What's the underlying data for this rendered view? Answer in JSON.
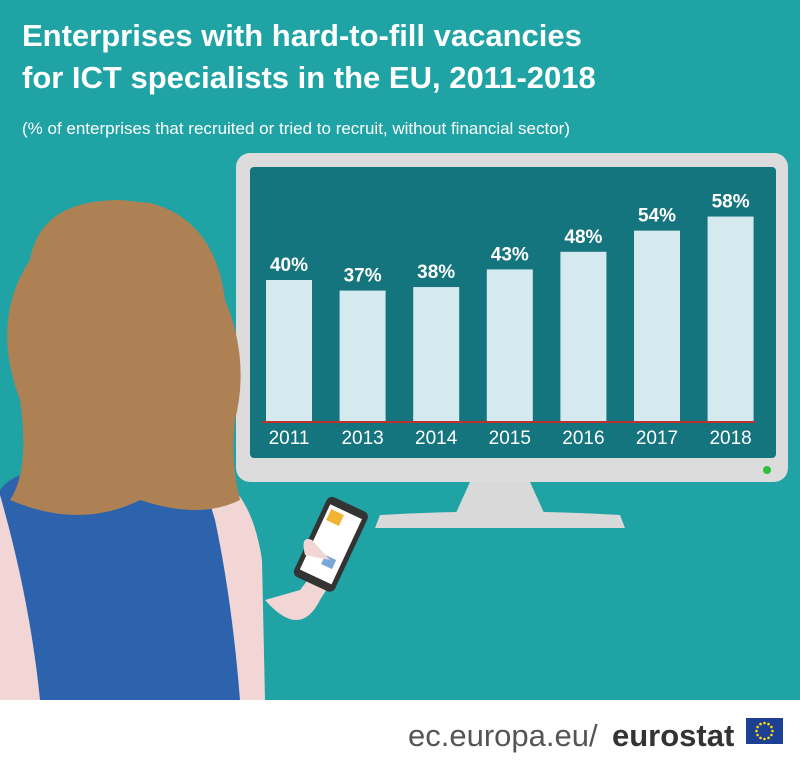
{
  "chart_data": {
    "type": "bar",
    "title": [
      "Enterprises with hard-to-fill vacancies",
      "for ICT specialists in the EU, 2011-2018"
    ],
    "subtitle": "(% of enterprises that recruited or tried to recruit, without financial sector)",
    "categories": [
      "2011",
      "2013",
      "2014",
      "2015",
      "2016",
      "2017",
      "2018"
    ],
    "values": [
      40,
      37,
      38,
      43,
      48,
      54,
      58
    ],
    "value_labels": [
      "40%",
      "37%",
      "38%",
      "43%",
      "48%",
      "54%",
      "58%"
    ],
    "color": "#d4eaee"
  },
  "footer": {
    "site": "ec.europa.eu/",
    "brand": "eurostat"
  }
}
